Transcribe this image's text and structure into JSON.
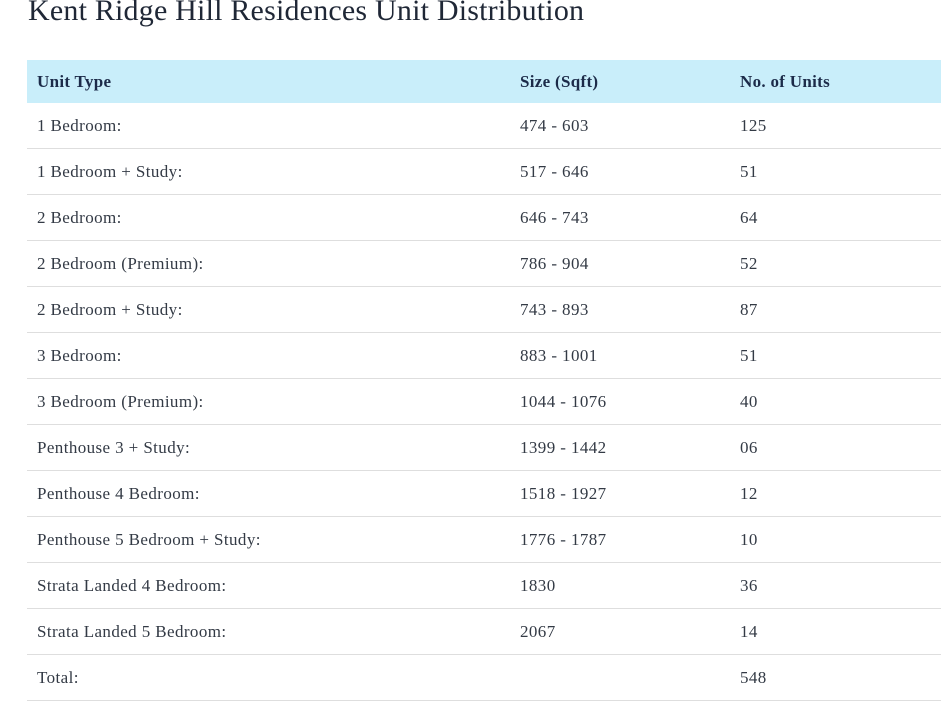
{
  "page": {
    "title": "Kent Ridge Hill Residences Unit Distribution"
  },
  "table": {
    "columns": [
      {
        "key": "unit_type",
        "label": "Unit Type"
      },
      {
        "key": "size_sqft",
        "label": "Size (Sqft)"
      },
      {
        "key": "units",
        "label": "No. of Units"
      }
    ],
    "rows": [
      {
        "unit_type": "1 Bedroom:",
        "size_sqft": "474 - 603",
        "units": "125"
      },
      {
        "unit_type": "1 Bedroom + Study:",
        "size_sqft": "517 - 646",
        "units": "51"
      },
      {
        "unit_type": "2 Bedroom:",
        "size_sqft": "646 - 743",
        "units": "64"
      },
      {
        "unit_type": "2 Bedroom (Premium):",
        "size_sqft": "786 - 904",
        "units": "52"
      },
      {
        "unit_type": "2 Bedroom + Study:",
        "size_sqft": "743 - 893",
        "units": "87"
      },
      {
        "unit_type": "3 Bedroom:",
        "size_sqft": "883 - 1001",
        "units": "51"
      },
      {
        "unit_type": "3 Bedroom (Premium):",
        "size_sqft": "1044 - 1076",
        "units": "40"
      },
      {
        "unit_type": "Penthouse 3 + Study:",
        "size_sqft": "1399 - 1442",
        "units": "06"
      },
      {
        "unit_type": "Penthouse 4 Bedroom:",
        "size_sqft": "1518 - 1927",
        "units": "12"
      },
      {
        "unit_type": "Penthouse 5 Bedroom + Study:",
        "size_sqft": "1776 - 1787",
        "units": "10"
      },
      {
        "unit_type": "Strata Landed 4 Bedroom:",
        "size_sqft": "1830",
        "units": "36"
      },
      {
        "unit_type": "Strata Landed 5 Bedroom:",
        "size_sqft": "2067",
        "units": "14"
      },
      {
        "unit_type": "Total:",
        "size_sqft": "",
        "units": "548"
      }
    ]
  },
  "colors": {
    "header_bg": "#c9eefa",
    "header_text": "#1c2b49",
    "body_text": "#333a45",
    "row_border": "#dedede",
    "title_text": "#1f2736"
  }
}
